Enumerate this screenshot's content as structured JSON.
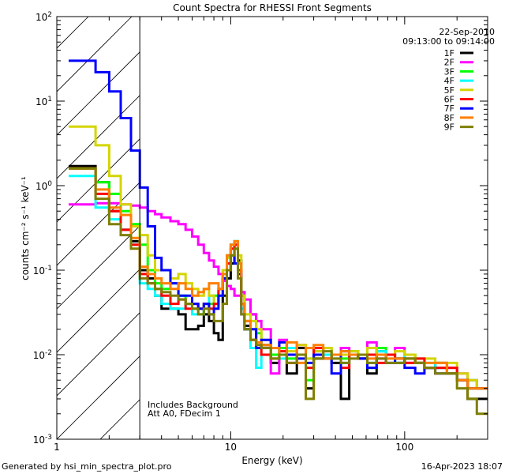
{
  "chart_data": {
    "type": "line",
    "title": "Count Spectra for RHESSI Front Segments",
    "xlabel": "Energy (keV)",
    "ylabel": "counts cm⁻² s⁻¹ keV⁻¹",
    "xscale": "log",
    "yscale": "log",
    "xlim": [
      1,
      300
    ],
    "ylim": [
      0.001,
      100
    ],
    "x_ticks": [
      {
        "value": 1,
        "label": "1"
      },
      {
        "value": 10,
        "label": "10"
      },
      {
        "value": 100,
        "label": "100"
      }
    ],
    "y_ticks": [
      {
        "value": 0.001,
        "base": "10",
        "exp": "-3"
      },
      {
        "value": 0.01,
        "base": "10",
        "exp": "-2"
      },
      {
        "value": 0.1,
        "base": "10",
        "exp": "-1"
      },
      {
        "value": 1,
        "base": "10",
        "exp": "0"
      },
      {
        "value": 10,
        "base": "10",
        "exp": "1"
      },
      {
        "value": 100,
        "base": "10",
        "exp": "2"
      }
    ],
    "shaded_region_kev": [
      1,
      3
    ],
    "legend_placement": "top-right",
    "date": "22-Sep-2010",
    "time_range": "09:13:00 to 09:14:00",
    "notes": [
      "Includes Background",
      "Att A0, FDecim 1"
    ],
    "energy_edges": [
      1.17,
      1.67,
      2,
      2.33,
      2.67,
      3,
      3.33,
      3.67,
      4,
      4.5,
      5,
      5.5,
      6,
      6.5,
      7,
      7.5,
      8,
      8.5,
      9,
      9.5,
      10,
      10.5,
      11,
      11.5,
      12,
      13,
      14,
      15,
      17,
      19,
      21,
      24,
      27,
      30,
      34,
      38,
      43,
      48,
      54,
      61,
      69,
      78,
      88,
      100,
      115,
      130,
      150,
      175,
      200,
      230,
      260,
      300
    ],
    "series": [
      {
        "name": "1F",
        "color": "#000000",
        "values": [
          1.7,
          1.1,
          0.5,
          0.3,
          0.22,
          0.1,
          0.08,
          0.05,
          0.035,
          0.035,
          0.03,
          0.02,
          0.02,
          0.022,
          0.03,
          0.025,
          0.018,
          0.015,
          0.05,
          0.08,
          0.12,
          0.2,
          0.13,
          0.05,
          0.022,
          0.03,
          0.012,
          0.013,
          0.008,
          0.01,
          0.006,
          0.012,
          0.004,
          0.009,
          0.01,
          0.008,
          0.003,
          0.01,
          0.009,
          0.006,
          0.011,
          0.01,
          0.008,
          0.009,
          0.008,
          0.007,
          0.008,
          0.006,
          0.005,
          0.003,
          0.003
        ]
      },
      {
        "name": "2F",
        "color": "#ff00ff",
        "values": [
          0.6,
          0.62,
          0.62,
          0.6,
          0.58,
          0.55,
          0.5,
          0.46,
          0.42,
          0.38,
          0.35,
          0.3,
          0.25,
          0.2,
          0.16,
          0.13,
          0.11,
          0.09,
          0.075,
          0.065,
          0.06,
          0.05,
          0.05,
          0.055,
          0.045,
          0.03,
          0.025,
          0.02,
          0.006,
          0.015,
          0.012,
          0.013,
          0.012,
          0.011,
          0.009,
          0.01,
          0.012,
          0.011,
          0.01,
          0.014,
          0.009,
          0.01,
          0.012,
          0.008,
          0.008,
          0.007,
          0.007,
          0.007,
          0.006,
          0.005,
          0.004
        ]
      },
      {
        "name": "3F",
        "color": "#00ff00",
        "values": [
          1.6,
          1.1,
          0.8,
          0.5,
          0.35,
          0.2,
          0.1,
          0.07,
          0.06,
          0.07,
          0.05,
          0.04,
          0.035,
          0.03,
          0.04,
          0.04,
          0.05,
          0.06,
          0.08,
          0.15,
          0.2,
          0.22,
          0.1,
          0.04,
          0.02,
          0.015,
          0.018,
          0.012,
          0.01,
          0.012,
          0.009,
          0.01,
          0.005,
          0.01,
          0.012,
          0.01,
          0.009,
          0.011,
          0.01,
          0.007,
          0.012,
          0.01,
          0.009,
          0.01,
          0.008,
          0.007,
          0.007,
          0.006,
          0.005,
          0.004,
          0.004
        ]
      },
      {
        "name": "4F",
        "color": "#00ffff",
        "values": [
          1.3,
          0.55,
          0.4,
          0.3,
          0.2,
          0.07,
          0.06,
          0.05,
          0.04,
          0.035,
          0.035,
          0.04,
          0.03,
          0.03,
          0.04,
          0.05,
          0.04,
          0.05,
          0.1,
          0.15,
          0.2,
          0.22,
          0.12,
          0.035,
          0.02,
          0.012,
          0.007,
          0.01,
          0.012,
          0.009,
          0.012,
          0.01,
          0.009,
          0.011,
          0.01,
          0.009,
          0.008,
          0.01,
          0.009,
          0.008,
          0.011,
          0.01,
          0.008,
          0.01,
          0.009,
          0.008,
          0.007,
          0.006,
          0.005,
          0.005,
          0.004
        ]
      },
      {
        "name": "5F",
        "color": "#d4d400",
        "values": [
          5,
          3,
          1.3,
          0.6,
          0.33,
          0.26,
          0.15,
          0.1,
          0.1,
          0.08,
          0.09,
          0.07,
          0.06,
          0.05,
          0.06,
          0.05,
          0.04,
          0.06,
          0.1,
          0.14,
          0.18,
          0.2,
          0.15,
          0.05,
          0.03,
          0.025,
          0.02,
          0.015,
          0.012,
          0.01,
          0.011,
          0.013,
          0.009,
          0.011,
          0.012,
          0.01,
          0.01,
          0.011,
          0.009,
          0.012,
          0.01,
          0.01,
          0.011,
          0.01,
          0.009,
          0.009,
          0.008,
          0.008,
          0.006,
          0.005,
          0.004
        ]
      },
      {
        "name": "6F",
        "color": "#ff0000",
        "values": [
          1.6,
          0.8,
          0.5,
          0.3,
          0.2,
          0.09,
          0.07,
          0.06,
          0.05,
          0.04,
          0.045,
          0.035,
          0.04,
          0.035,
          0.04,
          0.035,
          0.04,
          0.06,
          0.08,
          0.12,
          0.18,
          0.2,
          0.1,
          0.04,
          0.025,
          0.015,
          0.012,
          0.01,
          0.009,
          0.011,
          0.008,
          0.01,
          0.007,
          0.012,
          0.009,
          0.01,
          0.007,
          0.01,
          0.009,
          0.01,
          0.008,
          0.01,
          0.009,
          0.008,
          0.009,
          0.007,
          0.007,
          0.007,
          0.005,
          0.004,
          0.004
        ]
      },
      {
        "name": "7F",
        "color": "#0000ff",
        "values": [
          30,
          22,
          13,
          6.3,
          2.6,
          0.95,
          0.33,
          0.14,
          0.1,
          0.07,
          0.05,
          0.05,
          0.04,
          0.035,
          0.04,
          0.03,
          0.035,
          0.05,
          0.08,
          0.1,
          0.15,
          0.12,
          0.09,
          0.03,
          0.02,
          0.02,
          0.012,
          0.015,
          0.012,
          0.014,
          0.01,
          0.009,
          0.008,
          0.01,
          0.009,
          0.006,
          0.011,
          0.01,
          0.009,
          0.007,
          0.01,
          0.008,
          0.009,
          0.007,
          0.006,
          0.007,
          0.006,
          0.006,
          0.005,
          0.004,
          0.004
        ]
      },
      {
        "name": "8F",
        "color": "#ff7f00",
        "values": [
          1.6,
          0.9,
          0.55,
          0.45,
          0.24,
          0.11,
          0.09,
          0.08,
          0.07,
          0.06,
          0.07,
          0.06,
          0.05,
          0.055,
          0.06,
          0.07,
          0.07,
          0.06,
          0.09,
          0.15,
          0.2,
          0.22,
          0.12,
          0.04,
          0.025,
          0.015,
          0.014,
          0.013,
          0.012,
          0.01,
          0.014,
          0.008,
          0.012,
          0.013,
          0.009,
          0.01,
          0.011,
          0.01,
          0.01,
          0.009,
          0.01,
          0.009,
          0.009,
          0.009,
          0.008,
          0.008,
          0.008,
          0.006,
          0.005,
          0.004,
          0.004
        ]
      },
      {
        "name": "9F",
        "color": "#7f7f00",
        "values": [
          1.6,
          0.7,
          0.35,
          0.26,
          0.18,
          0.08,
          0.07,
          0.06,
          0.055,
          0.05,
          0.045,
          0.04,
          0.035,
          0.03,
          0.035,
          0.03,
          0.025,
          0.025,
          0.04,
          0.1,
          0.15,
          0.18,
          0.08,
          0.03,
          0.02,
          0.015,
          0.013,
          0.012,
          0.009,
          0.01,
          0.008,
          0.01,
          0.003,
          0.009,
          0.011,
          0.009,
          0.008,
          0.009,
          0.01,
          0.008,
          0.009,
          0.008,
          0.008,
          0.009,
          0.008,
          0.007,
          0.006,
          0.006,
          0.004,
          0.003,
          0.002
        ]
      }
    ]
  },
  "footer": {
    "generated_by": "Generated by hsi_min_spectra_plot.pro",
    "timestamp": "16-Apr-2023 18:07"
  }
}
